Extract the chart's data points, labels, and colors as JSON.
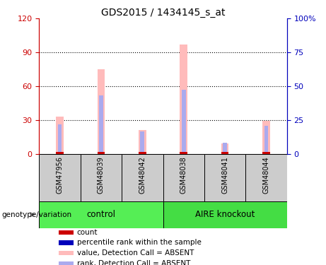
{
  "title": "GDS2015 / 1434145_s_at",
  "samples": [
    "GSM47956",
    "GSM48039",
    "GSM48042",
    "GSM48038",
    "GSM48041",
    "GSM48044"
  ],
  "groups": [
    {
      "name": "control",
      "indices": [
        0,
        1,
        2
      ],
      "color": "#55ee55"
    },
    {
      "name": "AIRE knockout",
      "indices": [
        3,
        4,
        5
      ],
      "color": "#44dd44"
    }
  ],
  "pink_bars": [
    33,
    75,
    21,
    97,
    9,
    29
  ],
  "blue_bars": [
    26,
    52,
    20,
    57,
    10,
    25
  ],
  "ylim_left": [
    0,
    120
  ],
  "ylim_right": [
    0,
    100
  ],
  "yticks_left": [
    0,
    30,
    60,
    90,
    120
  ],
  "ytick_labels_left": [
    "0",
    "30",
    "60",
    "90",
    "120"
  ],
  "yticks_right": [
    0,
    25,
    50,
    75,
    100
  ],
  "ytick_labels_right": [
    "0",
    "25",
    "50",
    "75",
    "100%"
  ],
  "left_axis_color": "#cc0000",
  "right_axis_color": "#0000bb",
  "grid_color": "#000000",
  "pink_color": "#ffbbbb",
  "blue_color": "#aaaaee",
  "red_color": "#cc0000",
  "blue_dark": "#0000bb",
  "legend_items": [
    {
      "label": "count",
      "color": "#cc0000"
    },
    {
      "label": "percentile rank within the sample",
      "color": "#0000bb"
    },
    {
      "label": "value, Detection Call = ABSENT",
      "color": "#ffbbbb"
    },
    {
      "label": "rank, Detection Call = ABSENT",
      "color": "#aaaaee"
    }
  ],
  "group_label": "genotype/variation",
  "bg_color": "#cccccc"
}
